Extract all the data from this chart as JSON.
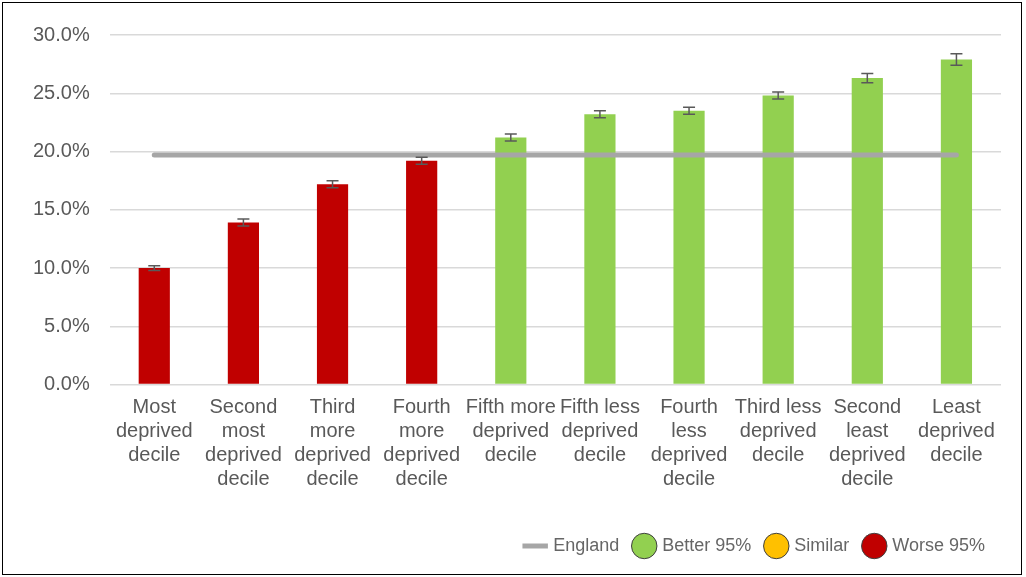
{
  "chart_data": {
    "type": "bar",
    "categories": [
      "Most deprived decile",
      "Second most deprived decile",
      "Third more deprived decile",
      "Fourth more deprived decile",
      "Fifth more deprived decile",
      "Fifth less deprived decile",
      "Fourth less deprived decile",
      "Third less deprived decile",
      "Second least deprived decile",
      "Least deprived decile"
    ],
    "series": [
      {
        "name": "England",
        "type": "line",
        "color": "#a6a6a6",
        "values": [
          19.7,
          19.7,
          19.7,
          19.7,
          19.7,
          19.7,
          19.7,
          19.7,
          19.7,
          19.7
        ]
      },
      {
        "name": "Better 95%",
        "color": "#92d050",
        "values": [
          null,
          null,
          null,
          null,
          21.2,
          23.2,
          23.5,
          24.8,
          26.3,
          27.9
        ],
        "errors": [
          null,
          null,
          null,
          null,
          0.3,
          0.3,
          0.3,
          0.3,
          0.4,
          0.5
        ]
      },
      {
        "name": "Similar",
        "color": "#ffc000",
        "values": [
          null,
          null,
          null,
          null,
          null,
          null,
          null,
          null,
          null,
          null
        ]
      },
      {
        "name": "Worse 95%",
        "color": "#c00000",
        "values": [
          10.0,
          13.9,
          17.2,
          19.2,
          null,
          null,
          null,
          null,
          null,
          null
        ],
        "errors": [
          0.2,
          0.3,
          0.3,
          0.3,
          null,
          null,
          null,
          null,
          null,
          null
        ]
      }
    ],
    "ylim": [
      0,
      30
    ],
    "yticks": [
      {
        "value": 0,
        "label": "0.0%"
      },
      {
        "value": 5,
        "label": "5.0%"
      },
      {
        "value": 10,
        "label": "10.0%"
      },
      {
        "value": 15,
        "label": "15.0%"
      },
      {
        "value": 20,
        "label": "20.0%"
      },
      {
        "value": 25,
        "label": "25.0%"
      },
      {
        "value": 30,
        "label": "30.0%"
      }
    ],
    "grid": "y",
    "legend": "bottom right"
  }
}
